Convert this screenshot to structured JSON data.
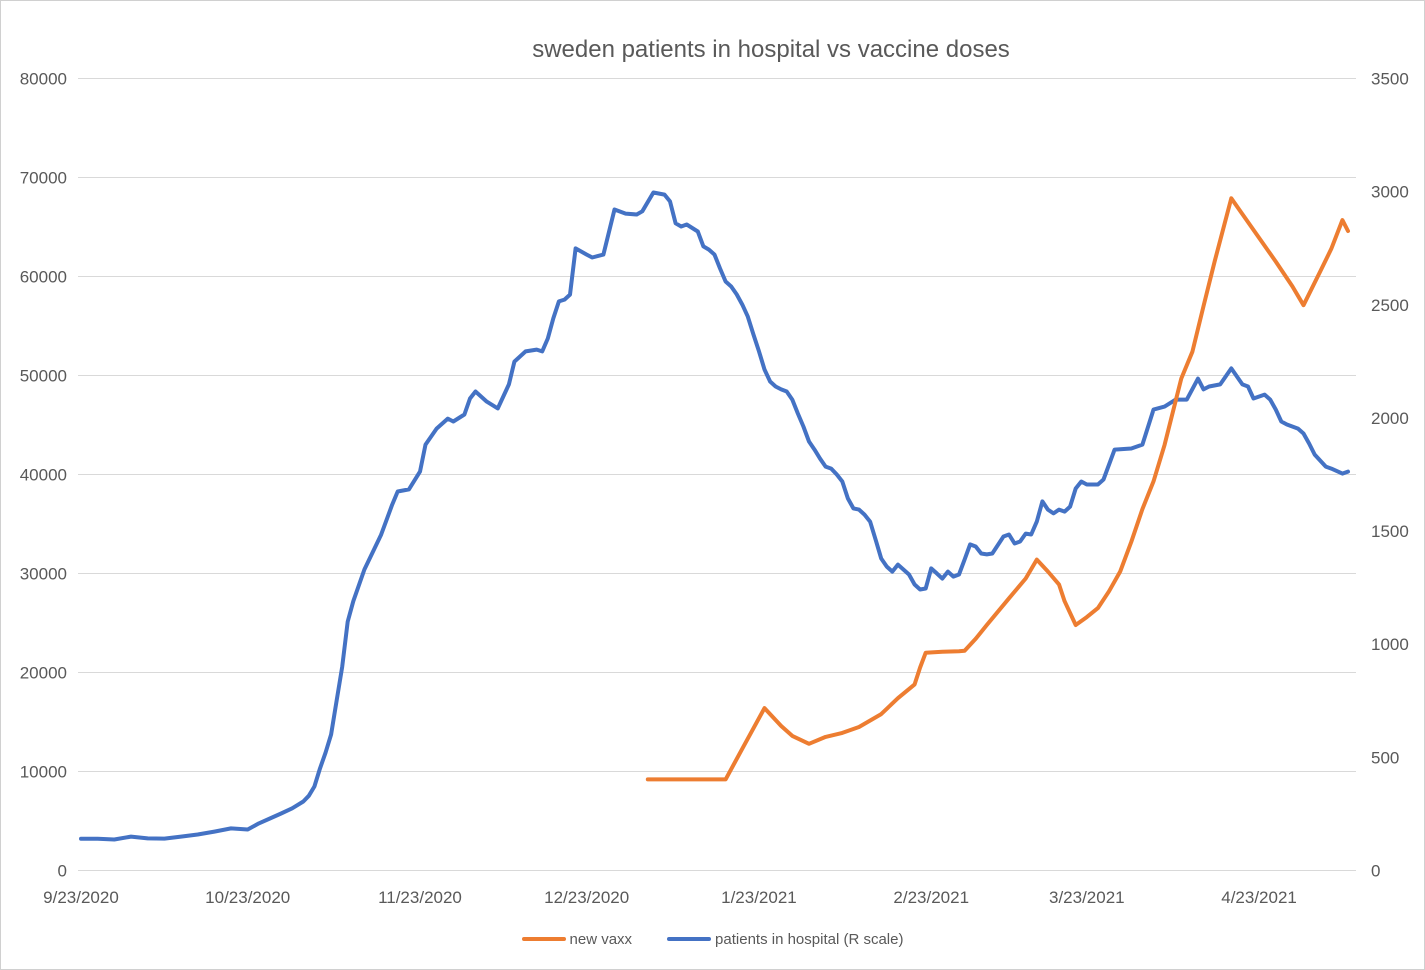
{
  "window": {
    "background": "#ffffff",
    "border_color": "#d0d0d0"
  },
  "chart_data": {
    "type": "line",
    "title": "sweden patients in hospital vs vaccine doses",
    "title_color": "#595959",
    "text_color": "#595959",
    "gridline_color": "#d9d9d9",
    "grid": true,
    "legend_position": "bottom",
    "x_axis": {
      "type": "date",
      "tick_labels": [
        "9/23/2020",
        "10/23/2020",
        "11/23/2020",
        "12/23/2020",
        "1/23/2021",
        "2/23/2021",
        "3/23/2021",
        "4/23/2021"
      ]
    },
    "left_axis": {
      "min": 0,
      "max": 80000,
      "step": 10000,
      "tick_labels": [
        "0",
        "10000",
        "20000",
        "30000",
        "40000",
        "50000",
        "60000",
        "70000",
        "80000"
      ],
      "used_by": "new vaxx"
    },
    "right_axis": {
      "min": 0,
      "max": 3500,
      "step": 500,
      "tick_labels": [
        "0",
        "500",
        "1000",
        "1500",
        "2000",
        "2500",
        "3000",
        "3500"
      ],
      "used_by": "patients in hospital (R scale)"
    },
    "series": [
      {
        "name": "patients in hospital (R scale)",
        "color": "#4472C4",
        "axis": "right",
        "points": [
          [
            "2020-09-23",
            140
          ],
          [
            "2020-09-26",
            140
          ],
          [
            "2020-09-29",
            137
          ],
          [
            "2020-10-02",
            150
          ],
          [
            "2020-10-05",
            142
          ],
          [
            "2020-10-08",
            141
          ],
          [
            "2020-10-11",
            150
          ],
          [
            "2020-10-14",
            159
          ],
          [
            "2020-10-17",
            172
          ],
          [
            "2020-10-20",
            186
          ],
          [
            "2020-10-23",
            181
          ],
          [
            "2020-10-25",
            208
          ],
          [
            "2020-10-27",
            230
          ],
          [
            "2020-10-29",
            252
          ],
          [
            "2020-10-31",
            275
          ],
          [
            "2020-11-02",
            305
          ],
          [
            "2020-11-03",
            330
          ],
          [
            "2020-11-04",
            371
          ],
          [
            "2020-11-05",
            451
          ],
          [
            "2020-11-06",
            520
          ],
          [
            "2020-11-07",
            601
          ],
          [
            "2020-11-08",
            750
          ],
          [
            "2020-11-09",
            900
          ],
          [
            "2020-11-10",
            1100
          ],
          [
            "2020-11-11",
            1190
          ],
          [
            "2020-11-13",
            1330
          ],
          [
            "2020-11-16",
            1484
          ],
          [
            "2020-11-18",
            1617
          ],
          [
            "2020-11-19",
            1675
          ],
          [
            "2020-11-21",
            1684
          ],
          [
            "2020-11-23",
            1763
          ],
          [
            "2020-11-24",
            1882
          ],
          [
            "2020-11-26",
            1953
          ],
          [
            "2020-11-28",
            1997
          ],
          [
            "2020-11-29",
            1984
          ],
          [
            "2020-12-01",
            2015
          ],
          [
            "2020-12-02",
            2086
          ],
          [
            "2020-12-03",
            2117
          ],
          [
            "2020-12-05",
            2072
          ],
          [
            "2020-12-07",
            2042
          ],
          [
            "2020-12-09",
            2148
          ],
          [
            "2020-12-10",
            2249
          ],
          [
            "2020-12-12",
            2294
          ],
          [
            "2020-12-14",
            2302
          ],
          [
            "2020-12-15",
            2294
          ],
          [
            "2020-12-16",
            2351
          ],
          [
            "2020-12-17",
            2440
          ],
          [
            "2020-12-18",
            2515
          ],
          [
            "2020-12-19",
            2523
          ],
          [
            "2020-12-20",
            2545
          ],
          [
            "2020-12-21",
            2749
          ],
          [
            "2020-12-23",
            2722
          ],
          [
            "2020-12-24",
            2709
          ],
          [
            "2020-12-26",
            2722
          ],
          [
            "2020-12-28",
            2921
          ],
          [
            "2020-12-30",
            2903
          ],
          [
            "2021-01-01",
            2899
          ],
          [
            "2021-01-02",
            2913
          ],
          [
            "2021-01-04",
            2996
          ],
          [
            "2021-01-06",
            2987
          ],
          [
            "2021-01-07",
            2957
          ],
          [
            "2021-01-08",
            2860
          ],
          [
            "2021-01-09",
            2846
          ],
          [
            "2021-01-10",
            2855
          ],
          [
            "2021-01-12",
            2824
          ],
          [
            "2021-01-13",
            2758
          ],
          [
            "2021-01-14",
            2744
          ],
          [
            "2021-01-15",
            2722
          ],
          [
            "2021-01-16",
            2660
          ],
          [
            "2021-01-17",
            2603
          ],
          [
            "2021-01-18",
            2581
          ],
          [
            "2021-01-19",
            2546
          ],
          [
            "2021-01-20",
            2501
          ],
          [
            "2021-01-21",
            2448
          ],
          [
            "2021-01-22",
            2369
          ],
          [
            "2021-01-23",
            2294
          ],
          [
            "2021-01-24",
            2214
          ],
          [
            "2021-01-25",
            2161
          ],
          [
            "2021-01-26",
            2139
          ],
          [
            "2021-01-27",
            2126
          ],
          [
            "2021-01-28",
            2117
          ],
          [
            "2021-01-29",
            2081
          ],
          [
            "2021-01-30",
            2019
          ],
          [
            "2021-01-31",
            1962
          ],
          [
            "2021-02-01",
            1896
          ],
          [
            "2021-02-02",
            1860
          ],
          [
            "2021-02-03",
            1820
          ],
          [
            "2021-02-04",
            1785
          ],
          [
            "2021-02-05",
            1776
          ],
          [
            "2021-02-06",
            1750
          ],
          [
            "2021-02-07",
            1719
          ],
          [
            "2021-02-08",
            1644
          ],
          [
            "2021-02-09",
            1600
          ],
          [
            "2021-02-10",
            1595
          ],
          [
            "2021-02-11",
            1573
          ],
          [
            "2021-02-12",
            1542
          ],
          [
            "2021-02-13",
            1461
          ],
          [
            "2021-02-14",
            1379
          ],
          [
            "2021-02-15",
            1343
          ],
          [
            "2021-02-16",
            1321
          ],
          [
            "2021-02-17",
            1352
          ],
          [
            "2021-02-18",
            1330
          ],
          [
            "2021-02-19",
            1308
          ],
          [
            "2021-02-20",
            1264
          ],
          [
            "2021-02-21",
            1242
          ],
          [
            "2021-02-22",
            1246
          ],
          [
            "2021-02-23",
            1335
          ],
          [
            "2021-02-24",
            1313
          ],
          [
            "2021-02-25",
            1290
          ],
          [
            "2021-02-26",
            1321
          ],
          [
            "2021-02-27",
            1299
          ],
          [
            "2021-02-28",
            1308
          ],
          [
            "2021-03-01",
            1374
          ],
          [
            "2021-03-02",
            1441
          ],
          [
            "2021-03-03",
            1432
          ],
          [
            "2021-03-04",
            1401
          ],
          [
            "2021-03-05",
            1397
          ],
          [
            "2021-03-06",
            1401
          ],
          [
            "2021-03-08",
            1476
          ],
          [
            "2021-03-09",
            1485
          ],
          [
            "2021-03-10",
            1445
          ],
          [
            "2021-03-11",
            1454
          ],
          [
            "2021-03-12",
            1489
          ],
          [
            "2021-03-13",
            1485
          ],
          [
            "2021-03-14",
            1542
          ],
          [
            "2021-03-15",
            1631
          ],
          [
            "2021-03-16",
            1595
          ],
          [
            "2021-03-17",
            1578
          ],
          [
            "2021-03-18",
            1595
          ],
          [
            "2021-03-19",
            1586
          ],
          [
            "2021-03-20",
            1608
          ],
          [
            "2021-03-21",
            1688
          ],
          [
            "2021-03-22",
            1719
          ],
          [
            "2021-03-23",
            1706
          ],
          [
            "2021-03-25",
            1706
          ],
          [
            "2021-03-26",
            1728
          ],
          [
            "2021-03-28",
            1860
          ],
          [
            "2021-03-31",
            1865
          ],
          [
            "2021-04-02",
            1882
          ],
          [
            "2021-04-04",
            2037
          ],
          [
            "2021-04-06",
            2050
          ],
          [
            "2021-04-08",
            2081
          ],
          [
            "2021-04-10",
            2081
          ],
          [
            "2021-04-12",
            2174
          ],
          [
            "2021-04-13",
            2126
          ],
          [
            "2021-04-14",
            2139
          ],
          [
            "2021-04-16",
            2148
          ],
          [
            "2021-04-18",
            2219
          ],
          [
            "2021-04-20",
            2148
          ],
          [
            "2021-04-21",
            2139
          ],
          [
            "2021-04-22",
            2086
          ],
          [
            "2021-04-24",
            2103
          ],
          [
            "2021-04-25",
            2081
          ],
          [
            "2021-04-26",
            2037
          ],
          [
            "2021-04-27",
            1984
          ],
          [
            "2021-04-28",
            1971
          ],
          [
            "2021-04-30",
            1953
          ],
          [
            "2021-05-01",
            1931
          ],
          [
            "2021-05-02",
            1887
          ],
          [
            "2021-05-03",
            1838
          ],
          [
            "2021-05-05",
            1785
          ],
          [
            "2021-05-06",
            1776
          ],
          [
            "2021-05-08",
            1754
          ],
          [
            "2021-05-09",
            1763
          ]
        ]
      },
      {
        "name": "new vaxx",
        "color": "#ED7D31",
        "axis": "left",
        "points": [
          [
            "2021-01-03",
            9200
          ],
          [
            "2021-01-07",
            9200
          ],
          [
            "2021-01-11",
            9200
          ],
          [
            "2021-01-14",
            9200
          ],
          [
            "2021-01-17",
            9200
          ],
          [
            "2021-01-20",
            12300
          ],
          [
            "2021-01-24",
            16400
          ],
          [
            "2021-01-27",
            14600
          ],
          [
            "2021-01-29",
            13600
          ],
          [
            "2021-02-01",
            12800
          ],
          [
            "2021-02-04",
            13500
          ],
          [
            "2021-02-07",
            13900
          ],
          [
            "2021-02-10",
            14500
          ],
          [
            "2021-02-14",
            15800
          ],
          [
            "2021-02-17",
            17400
          ],
          [
            "2021-02-20",
            18800
          ],
          [
            "2021-02-21",
            20500
          ],
          [
            "2021-02-22",
            22000
          ],
          [
            "2021-02-25",
            22100
          ],
          [
            "2021-02-28",
            22150
          ],
          [
            "2021-03-01",
            22200
          ],
          [
            "2021-03-03",
            23400
          ],
          [
            "2021-03-05",
            24800
          ],
          [
            "2021-03-09",
            27500
          ],
          [
            "2021-03-12",
            29500
          ],
          [
            "2021-03-14",
            31400
          ],
          [
            "2021-03-16",
            30200
          ],
          [
            "2021-03-18",
            28900
          ],
          [
            "2021-03-19",
            27200
          ],
          [
            "2021-03-21",
            24800
          ],
          [
            "2021-03-23",
            25600
          ],
          [
            "2021-03-25",
            26500
          ],
          [
            "2021-03-27",
            28200
          ],
          [
            "2021-03-29",
            30200
          ],
          [
            "2021-03-31",
            33200
          ],
          [
            "2021-04-02",
            36500
          ],
          [
            "2021-04-04",
            39300
          ],
          [
            "2021-04-06",
            43000
          ],
          [
            "2021-04-09",
            49700
          ],
          [
            "2021-04-11",
            52400
          ],
          [
            "2021-04-13",
            57000
          ],
          [
            "2021-04-15",
            61500
          ],
          [
            "2021-04-18",
            67900
          ],
          [
            "2021-04-20",
            66300
          ],
          [
            "2021-04-23",
            63900
          ],
          [
            "2021-04-26",
            61500
          ],
          [
            "2021-04-29",
            59000
          ],
          [
            "2021-05-01",
            57100
          ],
          [
            "2021-05-04",
            60500
          ],
          [
            "2021-05-06",
            62800
          ],
          [
            "2021-05-08",
            65700
          ],
          [
            "2021-05-09",
            64600
          ]
        ]
      }
    ],
    "legend": [
      {
        "label": "new vaxx",
        "color": "#ED7D31"
      },
      {
        "label": "patients in hospital (R scale)",
        "color": "#4472C4"
      }
    ]
  }
}
